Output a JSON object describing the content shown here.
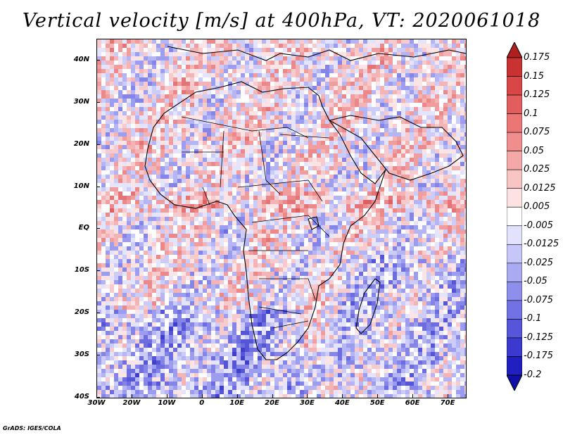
{
  "title": "Vertical velocity [m/s] at 400hPa, VT: 2020061018",
  "credit": "GrADS: IGES/COLA",
  "map": {
    "lat_labels": [
      "40N",
      "30N",
      "20N",
      "10N",
      "EQ",
      "10S",
      "20S",
      "30S",
      "40S"
    ],
    "lon_labels": [
      "30W",
      "20W",
      "10W",
      "0",
      "10E",
      "20E",
      "30E",
      "40E",
      "50E",
      "60E",
      "70E"
    ],
    "lat_range": [
      -40,
      45
    ],
    "lon_range": [
      -30,
      75
    ]
  },
  "colorbar": {
    "labels": [
      "0.175",
      "0.15",
      "0.125",
      "0.1",
      "0.075",
      "0.05",
      "0.025",
      "0.0125",
      "0.005",
      "-0.005",
      "-0.0125",
      "-0.025",
      "-0.05",
      "-0.075",
      "-0.1",
      "-0.125",
      "-0.175",
      "-0.2"
    ],
    "colors": [
      "#b01e1e",
      "#c83232",
      "#d84646",
      "#e25e5e",
      "#ea7676",
      "#f08e8e",
      "#f4a8a8",
      "#f8c4c4",
      "#fce2e2",
      "#ffffff",
      "#e2e2fc",
      "#c6c6f8",
      "#aaaaf2",
      "#8e8eec",
      "#7272e4",
      "#5656da",
      "#3a3acf",
      "#2020c0",
      "#1010a8"
    ]
  }
}
